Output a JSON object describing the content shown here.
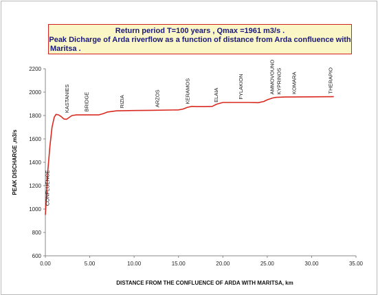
{
  "chart_data": {
    "type": "line",
    "title": "Return period T=100 years , Qmax =1961   m3/s .",
    "subtitle_line1": "Peak Dicharge of Arda riverflow as a function of distance from Arda confluence with",
    "subtitle_line2": "Maritsa .",
    "xlabel": "DISTANCE  FROM THE CONFLUENCE OF ARDA WITH MARITSA,  km",
    "ylabel": "PEAK DISCHARGE ,m3/s",
    "xlim": [
      0,
      35
    ],
    "ylim": [
      600,
      2200
    ],
    "x_ticks": [
      "0.00",
      "5.00",
      "10.00",
      "15.00",
      "20.00",
      "25.00",
      "30.00",
      "35.00"
    ],
    "y_ticks": [
      "600",
      "800",
      "1000",
      "1200",
      "1400",
      "1600",
      "1800",
      "2000",
      "2200"
    ],
    "grid": false,
    "line_color": "#d9281e",
    "series": [
      {
        "x": [
          0.0,
          0.1,
          0.25,
          0.5,
          0.75,
          1.0,
          1.2,
          1.5,
          1.8,
          2.1,
          2.4,
          2.7,
          3.0,
          3.5,
          4.0,
          5.0,
          6.0,
          6.5,
          7.0,
          8.0,
          10.0,
          12.0,
          15.0,
          15.5,
          16.0,
          16.5,
          17.0,
          18.0,
          18.8,
          19.3,
          20.0,
          22.0,
          23.0,
          24.0,
          24.6,
          25.0,
          25.6,
          26.0,
          27.0,
          30.0,
          32.5
        ],
        "y": [
          950,
          1080,
          1300,
          1530,
          1700,
          1785,
          1810,
          1805,
          1790,
          1770,
          1768,
          1785,
          1800,
          1805,
          1805,
          1805,
          1805,
          1815,
          1830,
          1840,
          1843,
          1845,
          1848,
          1855,
          1870,
          1878,
          1877,
          1877,
          1878,
          1897,
          1912,
          1912,
          1912,
          1910,
          1920,
          1935,
          1950,
          1955,
          1958,
          1960,
          1961
        ]
      }
    ],
    "annotations": [
      {
        "text": "CONFLUENCE",
        "x": 0.2,
        "y": 1010
      },
      {
        "text": "KASTANIES",
        "x": 2.4,
        "y": 1805
      },
      {
        "text": "BRIDGE",
        "x": 4.6,
        "y": 1815
      },
      {
        "text": "RIZIA",
        "x": 8.6,
        "y": 1845
      },
      {
        "text": "ARZOS",
        "x": 12.6,
        "y": 1852
      },
      {
        "text": "KERAMOS",
        "x": 16.0,
        "y": 1880
      },
      {
        "text": "ELAIA",
        "x": 19.2,
        "y": 1895
      },
      {
        "text": "FYLAKION",
        "x": 22.0,
        "y": 1920
      },
      {
        "text": "AMMOVOUNO",
        "x": 25.5,
        "y": 1962
      },
      {
        "text": "KYPRINOS",
        "x": 26.3,
        "y": 1962
      },
      {
        "text": "KOMARA",
        "x": 28.0,
        "y": 1965
      },
      {
        "text": "THERAPIO",
        "x": 32.1,
        "y": 1968
      }
    ]
  }
}
